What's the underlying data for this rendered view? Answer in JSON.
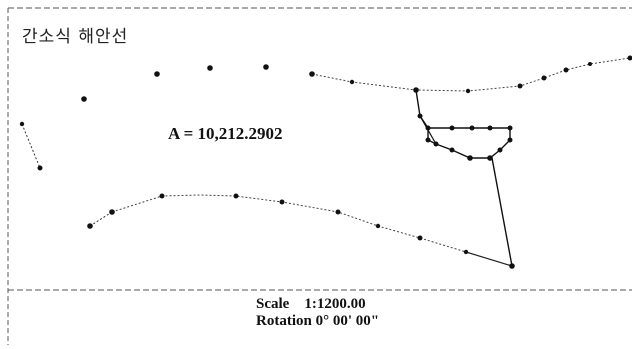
{
  "title": "간소식 해안선",
  "area_label": "A = 10,212.2902",
  "scale_label": "Scale    1:1200.00",
  "rotation_label": "Rotation 0° 00' 00\"",
  "colors": {
    "line": "#222222",
    "point": "#111111",
    "border": "#333333"
  }
}
